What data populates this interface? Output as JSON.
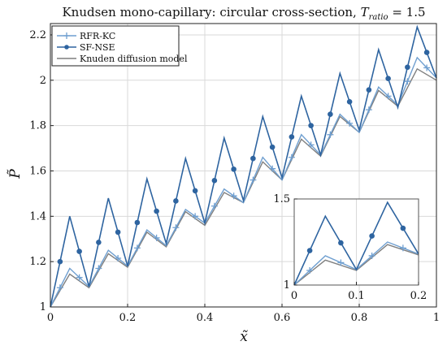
{
  "chart_data": {
    "type": "line",
    "title": "Knudsen mono-capillary: circular cross-section, T_ratio = 1.5",
    "title_main": "Knudsen mono-capillary: circular cross-section, ",
    "title_math": "T",
    "title_sub": "ratio",
    "title_tail": " = 1.5",
    "xlabel": "x̃",
    "ylabel": "P̃",
    "xlim": [
      0,
      1
    ],
    "ylim": [
      1,
      2.25
    ],
    "xticks": [
      "0",
      "0.2",
      "0.4",
      "0.6",
      "0.8",
      "1"
    ],
    "yticks": [
      "1",
      "1.2",
      "1.4",
      "1.6",
      "1.8",
      "2",
      "2.2"
    ],
    "grid": true,
    "legend_position": "top-left",
    "colors": {
      "rfr": "#6f9fd0",
      "sfnse": "#2e64a0",
      "knudsen": "#7f7f7f"
    },
    "series": [
      {
        "name": "RFR-KC",
        "marker": "plus",
        "x": [
          0,
          0.05,
          0.1,
          0.15,
          0.2,
          0.25,
          0.3,
          0.35,
          0.4,
          0.45,
          0.5,
          0.55,
          0.6,
          0.65,
          0.7,
          0.75,
          0.8,
          0.85,
          0.9,
          0.95,
          1
        ],
        "y": [
          1,
          1.17,
          1.09,
          1.25,
          1.18,
          1.34,
          1.27,
          1.43,
          1.37,
          1.52,
          1.46,
          1.66,
          1.56,
          1.76,
          1.67,
          1.85,
          1.77,
          1.97,
          1.89,
          2.1,
          2.01
        ]
      },
      {
        "name": "SF-NSE",
        "marker": "circle",
        "x": [
          0,
          0.05,
          0.1,
          0.15,
          0.2,
          0.25,
          0.3,
          0.35,
          0.4,
          0.45,
          0.5,
          0.55,
          0.6,
          0.65,
          0.7,
          0.75,
          0.8,
          0.85,
          0.9,
          0.95,
          1
        ],
        "y": [
          1,
          1.4,
          1.09,
          1.48,
          1.18,
          1.565,
          1.28,
          1.655,
          1.37,
          1.745,
          1.47,
          1.84,
          1.57,
          1.93,
          1.67,
          2.03,
          1.78,
          2.135,
          1.88,
          2.235,
          2.01
        ]
      },
      {
        "name": "Knuden diffusion model",
        "marker": "none",
        "x": [
          0,
          0.05,
          0.1,
          0.15,
          0.2,
          0.25,
          0.3,
          0.35,
          0.4,
          0.45,
          0.5,
          0.55,
          0.6,
          0.65,
          0.7,
          0.75,
          0.8,
          0.85,
          0.9,
          0.95,
          1
        ],
        "y": [
          1,
          1.145,
          1.085,
          1.235,
          1.175,
          1.33,
          1.265,
          1.42,
          1.36,
          1.505,
          1.46,
          1.64,
          1.56,
          1.74,
          1.665,
          1.84,
          1.77,
          1.955,
          1.885,
          2.05,
          2.0
        ]
      }
    ],
    "inset": {
      "xlim": [
        0,
        0.2
      ],
      "ylim": [
        1,
        1.5
      ],
      "xticks": [
        "0",
        "0.1",
        "0.2"
      ],
      "yticks": [
        "1",
        "1.5"
      ]
    }
  }
}
